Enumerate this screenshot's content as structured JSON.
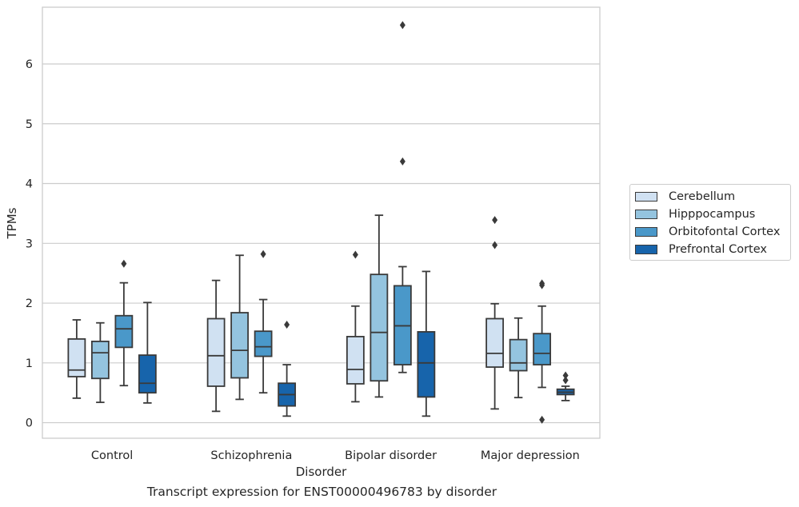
{
  "caption": "Transcript expression for ENST00000496783 by disorder",
  "chart_data": {
    "type": "box",
    "xlabel": "Disorder",
    "ylabel": "TPMs",
    "ylim": [
      -0.26,
      6.95
    ],
    "yticks": [
      0,
      1,
      2,
      3,
      4,
      5,
      6
    ],
    "grid": "horizontal",
    "legend_position": "right",
    "categories": [
      "Control",
      "Schizophrenia",
      "Bipolar disorder",
      "Major depression"
    ],
    "series": [
      {
        "name": "Cerebellum",
        "color": "#d0e1f2",
        "boxes": [
          {
            "whisker_low": 0.41,
            "q1": 0.77,
            "median": 0.88,
            "q3": 1.4,
            "whisker_high": 1.72,
            "outliers": []
          },
          {
            "whisker_low": 0.19,
            "q1": 0.61,
            "median": 1.12,
            "q3": 1.74,
            "whisker_high": 2.38,
            "outliers": []
          },
          {
            "whisker_low": 0.35,
            "q1": 0.65,
            "median": 0.89,
            "q3": 1.44,
            "whisker_high": 1.95,
            "outliers": [
              2.81
            ]
          },
          {
            "whisker_low": 0.23,
            "q1": 0.93,
            "median": 1.16,
            "q3": 1.74,
            "whisker_high": 1.99,
            "outliers": [
              2.97,
              3.39
            ]
          }
        ]
      },
      {
        "name": "Hipppocampus",
        "color": "#94c4df",
        "boxes": [
          {
            "whisker_low": 0.34,
            "q1": 0.74,
            "median": 1.17,
            "q3": 1.36,
            "whisker_high": 1.67,
            "outliers": []
          },
          {
            "whisker_low": 0.39,
            "q1": 0.75,
            "median": 1.21,
            "q3": 1.84,
            "whisker_high": 2.8,
            "outliers": []
          },
          {
            "whisker_low": 0.43,
            "q1": 0.7,
            "median": 1.51,
            "q3": 2.48,
            "whisker_high": 3.47,
            "outliers": []
          },
          {
            "whisker_low": 0.42,
            "q1": 0.87,
            "median": 1.0,
            "q3": 1.39,
            "whisker_high": 1.75,
            "outliers": []
          }
        ]
      },
      {
        "name": "Orbitofontal Cortex",
        "color": "#4a98c9",
        "boxes": [
          {
            "whisker_low": 0.62,
            "q1": 1.26,
            "median": 1.57,
            "q3": 1.79,
            "whisker_high": 2.34,
            "outliers": [
              2.66
            ]
          },
          {
            "whisker_low": 0.5,
            "q1": 1.11,
            "median": 1.27,
            "q3": 1.53,
            "whisker_high": 2.06,
            "outliers": [
              2.82
            ]
          },
          {
            "whisker_low": 0.84,
            "q1": 0.97,
            "median": 1.62,
            "q3": 2.29,
            "whisker_high": 2.61,
            "outliers": [
              4.37,
              6.65
            ]
          },
          {
            "whisker_low": 0.59,
            "q1": 0.97,
            "median": 1.16,
            "q3": 1.49,
            "whisker_high": 1.95,
            "outliers": [
              0.05,
              2.3,
              2.33
            ]
          }
        ]
      },
      {
        "name": "Prefrontal Cortex",
        "color": "#1764ab",
        "boxes": [
          {
            "whisker_low": 0.33,
            "q1": 0.5,
            "median": 0.66,
            "q3": 1.13,
            "whisker_high": 2.01,
            "outliers": []
          },
          {
            "whisker_low": 0.11,
            "q1": 0.28,
            "median": 0.47,
            "q3": 0.66,
            "whisker_high": 0.97,
            "outliers": [
              1.64
            ]
          },
          {
            "whisker_low": 0.11,
            "q1": 0.43,
            "median": 1.0,
            "q3": 1.52,
            "whisker_high": 2.53,
            "outliers": []
          },
          {
            "whisker_low": 0.37,
            "q1": 0.47,
            "median": 0.51,
            "q3": 0.56,
            "whisker_high": 0.61,
            "outliers": [
              0.71,
              0.79
            ]
          }
        ]
      }
    ]
  }
}
